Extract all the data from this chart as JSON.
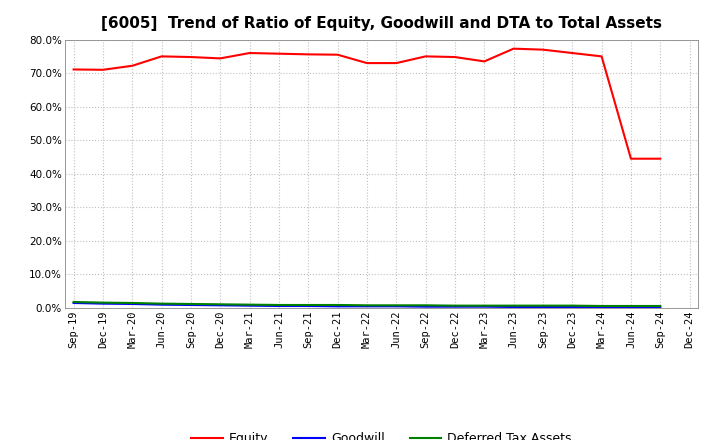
{
  "title": "[6005]  Trend of Ratio of Equity, Goodwill and DTA to Total Assets",
  "x_labels": [
    "Sep-19",
    "Dec-19",
    "Mar-20",
    "Jun-20",
    "Sep-20",
    "Dec-20",
    "Mar-21",
    "Jun-21",
    "Sep-21",
    "Dec-21",
    "Mar-22",
    "Jun-22",
    "Sep-22",
    "Dec-22",
    "Mar-23",
    "Jun-23",
    "Sep-23",
    "Dec-23",
    "Mar-24",
    "Jun-24",
    "Sep-24",
    "Dec-24"
  ],
  "equity": [
    0.711,
    0.71,
    0.722,
    0.75,
    0.748,
    0.744,
    0.76,
    0.758,
    0.756,
    0.755,
    0.73,
    0.73,
    0.75,
    0.748,
    0.735,
    0.773,
    0.77,
    0.76,
    0.75,
    0.445,
    0.445,
    null
  ],
  "goodwill": [
    0.015,
    0.013,
    0.012,
    0.01,
    0.009,
    0.008,
    0.007,
    0.006,
    0.006,
    0.005,
    0.005,
    0.005,
    0.004,
    0.004,
    0.004,
    0.003,
    0.003,
    0.003,
    0.002,
    0.002,
    0.002,
    null
  ],
  "dta": [
    0.018,
    0.016,
    0.015,
    0.013,
    0.012,
    0.011,
    0.01,
    0.009,
    0.009,
    0.009,
    0.008,
    0.008,
    0.008,
    0.007,
    0.007,
    0.007,
    0.007,
    0.007,
    0.006,
    0.006,
    0.006,
    null
  ],
  "equity_color": "#ff0000",
  "goodwill_color": "#0000ff",
  "dta_color": "#008000",
  "ylim": [
    0.0,
    0.8
  ],
  "yticks": [
    0.0,
    0.1,
    0.2,
    0.3,
    0.4,
    0.5,
    0.6,
    0.7,
    0.8
  ],
  "background_color": "#ffffff",
  "grid_color": "#b0b0b0",
  "title_fontsize": 11,
  "tick_fontsize": 7.5,
  "legend_labels": [
    "Equity",
    "Goodwill",
    "Deferred Tax Assets"
  ]
}
